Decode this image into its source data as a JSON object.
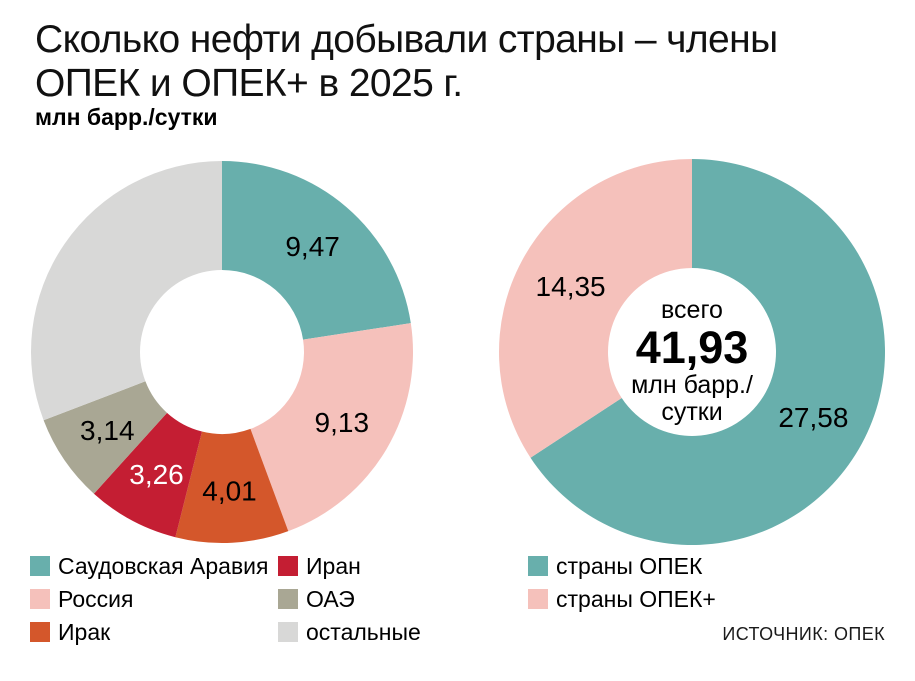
{
  "title_lines": [
    "Сколько нефти добывали страны – члены",
    "ОПЕК и ОПЕК+ в 2025 г."
  ],
  "subtitle": "млн барр./сутки",
  "source": "ИСТОЧНИК: ОПЕК",
  "colors": {
    "teal": "#68afac",
    "pink": "#f5c1bb",
    "orange": "#d4572b",
    "red": "#c41e33",
    "olive": "#a9a794",
    "light_gray": "#d8d8d7",
    "background": "#ffffff",
    "text": "#000000"
  },
  "chart_data": [
    {
      "type": "pie",
      "variant": "donut",
      "units": "млн барр./сутки",
      "start_angle_deg": 0,
      "direction": "clockwise",
      "slices": [
        {
          "key": "saudi-arabia",
          "label": "Саудовская Аравия",
          "value": 9.47,
          "display": "9,47",
          "color": "#68afac",
          "label_color": "#000000"
        },
        {
          "key": "russia",
          "label": "Россия",
          "value": 9.13,
          "display": "9,13",
          "color": "#f5c1bb",
          "label_color": "#000000"
        },
        {
          "key": "iraq",
          "label": "Ирак",
          "value": 4.01,
          "display": "4,01",
          "color": "#d4572b",
          "label_color": "#000000"
        },
        {
          "key": "iran",
          "label": "Иран",
          "value": 3.26,
          "display": "3,26",
          "color": "#c41e33",
          "label_color": "#ffffff"
        },
        {
          "key": "uae",
          "label": "ОАЭ",
          "value": 3.14,
          "display": "3,14",
          "color": "#a9a794",
          "label_color": "#000000"
        },
        {
          "key": "others",
          "label": "остальные",
          "value": 12.92,
          "display": "",
          "color": "#d8d8d7",
          "label_color": "#000000"
        }
      ]
    },
    {
      "type": "pie",
      "variant": "donut",
      "units": "млн барр./сутки",
      "start_angle_deg": 0,
      "direction": "clockwise",
      "total": 41.93,
      "center_text": {
        "prefix": "всего",
        "value": "41,93",
        "unit_line1": "млн барр./",
        "unit_line2": "сутки"
      },
      "slices": [
        {
          "key": "opec",
          "label": "страны ОПЕК",
          "value": 27.58,
          "display": "27,58",
          "color": "#68afac",
          "label_color": "#000000"
        },
        {
          "key": "opec-plus",
          "label": "страны ОПЕК+",
          "value": 14.35,
          "display": "14,35",
          "color": "#f5c1bb",
          "label_color": "#000000"
        }
      ]
    }
  ]
}
